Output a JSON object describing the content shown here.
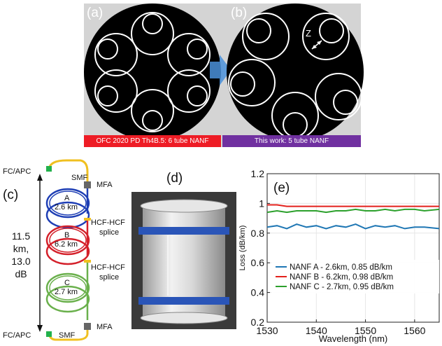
{
  "panels": {
    "a": {
      "label": "(a)",
      "caption": "OFC 2020 PD Th4B.5: 6 tube NANF",
      "caption_color": "#ee1c25"
    },
    "b": {
      "label": "(b)",
      "caption": "This work: 5 tube NANF",
      "caption_color": "#7030a0",
      "annotation": "Z"
    },
    "c": {
      "label": "(c)",
      "fc_apc_top": "FC/APC",
      "fc_apc_bottom": "FC/APC",
      "smf_top": "SMF",
      "smf_bottom": "SMF",
      "mfa_top": "MFA",
      "mfa_bottom": "MFA",
      "spool_a": "A",
      "spool_a_len": "2.6 km",
      "spool_b": "B",
      "spool_b_len": "6.2 km",
      "spool_c": "C",
      "spool_c_len": "2.7 km",
      "splice1_line1": "HCF-HCF",
      "splice1_line2": "splice",
      "splice2_line1": "HCF-HCF",
      "splice2_line2": "splice",
      "total_line1": "11.5",
      "total_line2": "km,",
      "total_line3": "13.0",
      "total_line4": "dB",
      "colors": {
        "a": "#1f3fb5",
        "b": "#d4202a",
        "c": "#6ab04c",
        "smf": "#f0c020",
        "connector": "#22b14c",
        "mfa": "#666666"
      }
    },
    "d": {
      "label": "(d)"
    },
    "e": {
      "label": "(e)"
    }
  },
  "chart_data": {
    "type": "line",
    "xlabel": "Wavelength (nm)",
    "ylabel": "Loss (dB/km)",
    "xlim": [
      1530,
      1565
    ],
    "ylim": [
      0.2,
      1.2
    ],
    "xticks": [
      1530,
      1540,
      1550,
      1560
    ],
    "yticks": [
      0.2,
      0.4,
      0.6,
      0.8,
      1,
      1.2
    ],
    "ytick_labels": [
      "0.2",
      "0.4",
      "0.6",
      "0.8",
      "1",
      "1.2"
    ],
    "legend_position": "bottom",
    "series": [
      {
        "name": "NANF A - 2.6km, 0.85 dB/km",
        "color": "#1f77b4",
        "x": [
          1530,
          1532,
          1534,
          1536,
          1538,
          1540,
          1542,
          1544,
          1546,
          1548,
          1550,
          1552,
          1554,
          1556,
          1558,
          1560,
          1562,
          1565
        ],
        "values": [
          0.84,
          0.85,
          0.83,
          0.86,
          0.84,
          0.85,
          0.83,
          0.85,
          0.84,
          0.86,
          0.83,
          0.85,
          0.84,
          0.85,
          0.83,
          0.84,
          0.84,
          0.83
        ]
      },
      {
        "name": "NANF B - 6.2km, 0.98 dB/km",
        "color": "#e3211c",
        "x": [
          1530,
          1532,
          1534,
          1536,
          1538,
          1540,
          1542,
          1544,
          1546,
          1548,
          1550,
          1552,
          1554,
          1556,
          1558,
          1560,
          1562,
          1565
        ],
        "values": [
          0.99,
          0.99,
          0.98,
          0.98,
          0.98,
          0.98,
          0.98,
          0.98,
          0.98,
          0.98,
          0.98,
          0.98,
          0.98,
          0.98,
          0.98,
          0.98,
          0.98,
          0.98
        ]
      },
      {
        "name": "NANF C - 2.7km, 0.95 dB/km",
        "color": "#2ca02c",
        "x": [
          1530,
          1532,
          1534,
          1536,
          1538,
          1540,
          1542,
          1544,
          1546,
          1548,
          1550,
          1552,
          1554,
          1556,
          1558,
          1560,
          1562,
          1565
        ],
        "values": [
          0.94,
          0.95,
          0.94,
          0.95,
          0.95,
          0.95,
          0.94,
          0.95,
          0.95,
          0.96,
          0.95,
          0.95,
          0.96,
          0.95,
          0.96,
          0.96,
          0.95,
          0.96
        ]
      }
    ]
  }
}
